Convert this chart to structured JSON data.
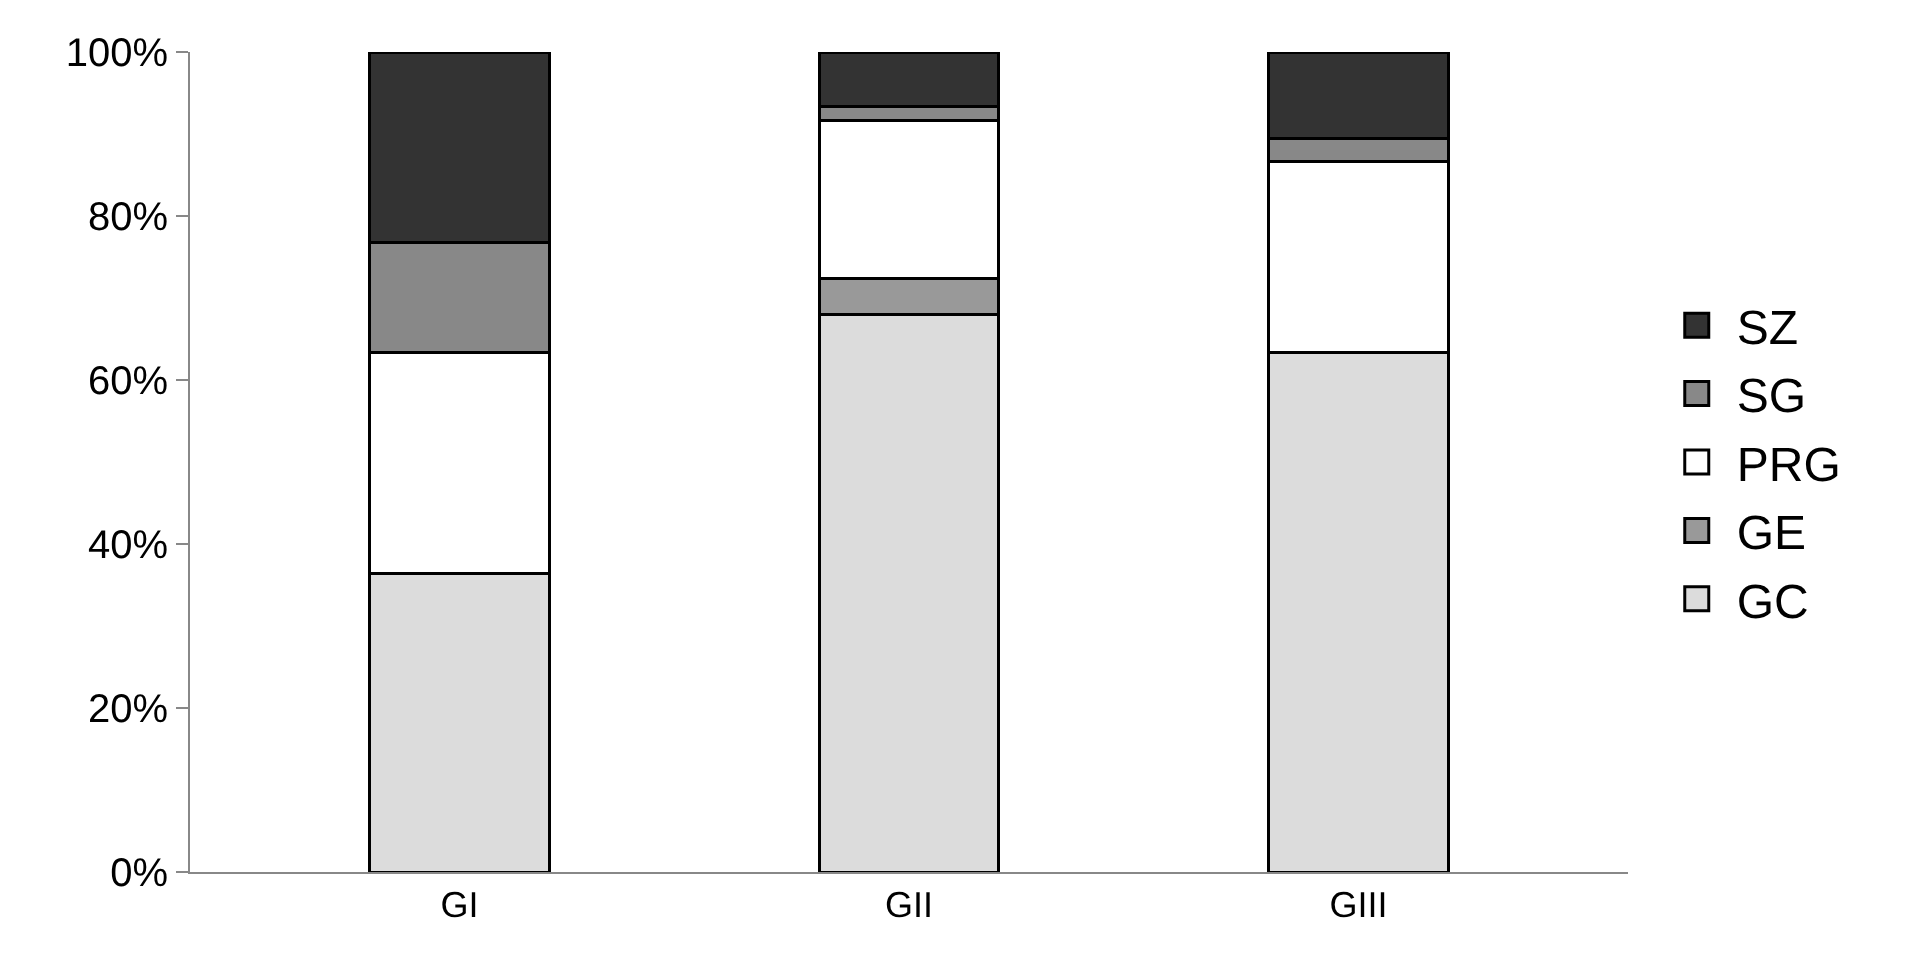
{
  "chart_data": {
    "type": "bar",
    "stacked": true,
    "categories": [
      "GI",
      "GII",
      "GIII"
    ],
    "series": [
      {
        "name": "GC",
        "color": "#dcdcdc",
        "values": [
          36.4,
          68,
          63.3
        ]
      },
      {
        "name": "GE",
        "color": "#999999",
        "values": [
          0,
          4.4,
          0
        ]
      },
      {
        "name": "PRG",
        "color": "#ffffff",
        "values": [
          26.9,
          19.2,
          23.3
        ]
      },
      {
        "name": "SG",
        "color": "#888888",
        "values": [
          13.5,
          1.7,
          2.8
        ]
      },
      {
        "name": "SZ",
        "color": "#333333",
        "values": [
          23.2,
          6.7,
          10.6
        ]
      }
    ],
    "ylim": [
      0,
      100
    ],
    "yticks": [
      {
        "value": 0,
        "label": "0%"
      },
      {
        "value": 20,
        "label": "20%"
      },
      {
        "value": 40,
        "label": "40%"
      },
      {
        "value": 60,
        "label": "60%"
      },
      {
        "value": 80,
        "label": "80%"
      },
      {
        "value": 100,
        "label": "100%"
      }
    ],
    "grid": false,
    "legend": "right"
  }
}
